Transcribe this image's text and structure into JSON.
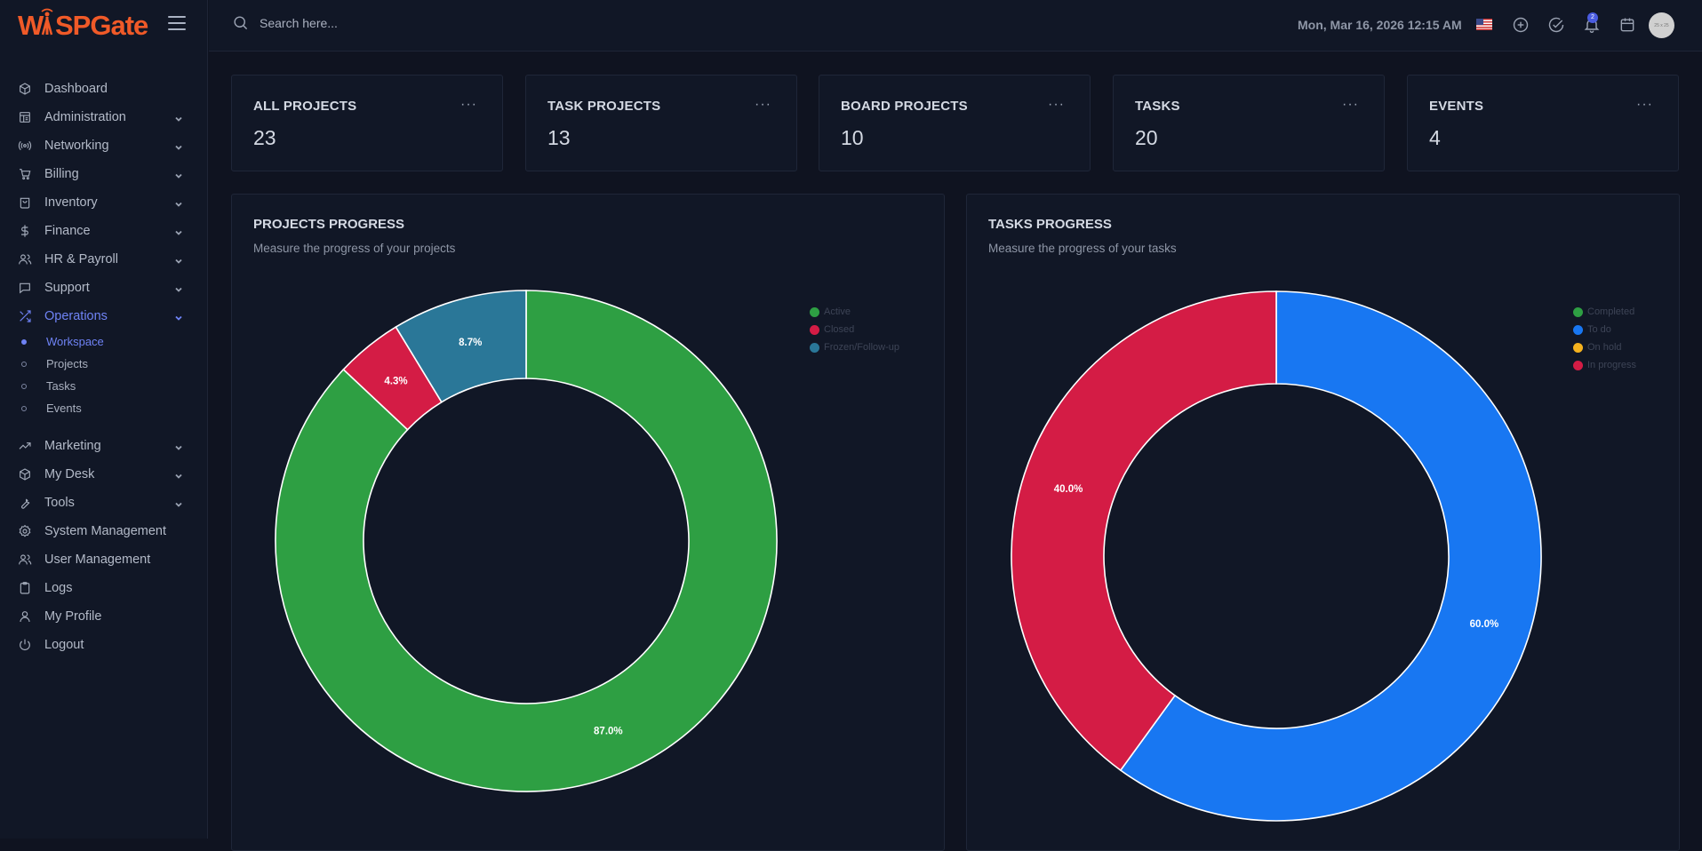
{
  "app": {
    "logo_text": "WISPGate"
  },
  "search": {
    "placeholder": "Search here..."
  },
  "header": {
    "datetime": "Mon, Mar 16, 2026 12:15 AM",
    "notification_count": "2",
    "avatar_text": "25 x 25"
  },
  "sidebar": {
    "items": [
      {
        "label": "Dashboard",
        "icon": "cube-icon",
        "chevron": false
      },
      {
        "label": "Administration",
        "icon": "layout-icon",
        "chevron": true
      },
      {
        "label": "Networking",
        "icon": "broadcast-icon",
        "chevron": true
      },
      {
        "label": "Billing",
        "icon": "cart-icon",
        "chevron": true
      },
      {
        "label": "Inventory",
        "icon": "bag-icon",
        "chevron": true
      },
      {
        "label": "Finance",
        "icon": "dollar-icon",
        "chevron": true
      },
      {
        "label": "HR & Payroll",
        "icon": "users-icon",
        "chevron": true
      },
      {
        "label": "Support",
        "icon": "chat-icon",
        "chevron": true
      },
      {
        "label": "Operations",
        "icon": "shuffle-icon",
        "chevron": true,
        "active": true
      }
    ],
    "sub_items": [
      {
        "label": "Workspace",
        "active": true
      },
      {
        "label": "Projects"
      },
      {
        "label": "Tasks"
      },
      {
        "label": "Events"
      }
    ],
    "items_after": [
      {
        "label": "Marketing",
        "icon": "trend-icon",
        "chevron": true
      },
      {
        "label": "My Desk",
        "icon": "cube-icon",
        "chevron": true
      },
      {
        "label": "Tools",
        "icon": "wrench-icon",
        "chevron": true
      },
      {
        "label": "System Management",
        "icon": "gear-icon",
        "chevron": false
      },
      {
        "label": "User Management",
        "icon": "users-icon",
        "chevron": false
      },
      {
        "label": "Logs",
        "icon": "clipboard-icon",
        "chevron": false
      },
      {
        "label": "My Profile",
        "icon": "user-icon",
        "chevron": false
      },
      {
        "label": "Logout",
        "icon": "power-icon",
        "chevron": false
      }
    ]
  },
  "stats": [
    {
      "title": "ALL PROJECTS",
      "value": "23"
    },
    {
      "title": "TASK PROJECTS",
      "value": "13"
    },
    {
      "title": "BOARD PROJECTS",
      "value": "10"
    },
    {
      "title": "TASKS",
      "value": "20"
    },
    {
      "title": "EVENTS",
      "value": "4"
    }
  ],
  "stat_more": "···",
  "chart_data": [
    {
      "type": "pie",
      "title": "PROJECTS PROGRESS",
      "subtitle": "Measure the progress of your projects",
      "categories": [
        "Active",
        "Closed",
        "Frozen/Follow-up"
      ],
      "values": [
        87.0,
        4.3,
        8.7
      ],
      "labels": [
        "87.0%",
        "4.3%",
        "8.7%"
      ],
      "colors": [
        "#2e9f43",
        "#d41c45",
        "#2a7798"
      ],
      "legend": "top-right",
      "donut": true
    },
    {
      "type": "pie",
      "title": "TASKS PROGRESS",
      "subtitle": "Measure the progress of your tasks",
      "categories": [
        "Completed",
        "To do",
        "On hold",
        "In progress"
      ],
      "values": [
        0,
        60.0,
        0,
        40.0
      ],
      "labels": [
        "",
        "60.0%",
        "",
        "40.0%"
      ],
      "colors": [
        "#2e9f43",
        "#1877f2",
        "#f5b21e",
        "#d41c45"
      ],
      "legend": "top-right",
      "donut": true
    }
  ]
}
